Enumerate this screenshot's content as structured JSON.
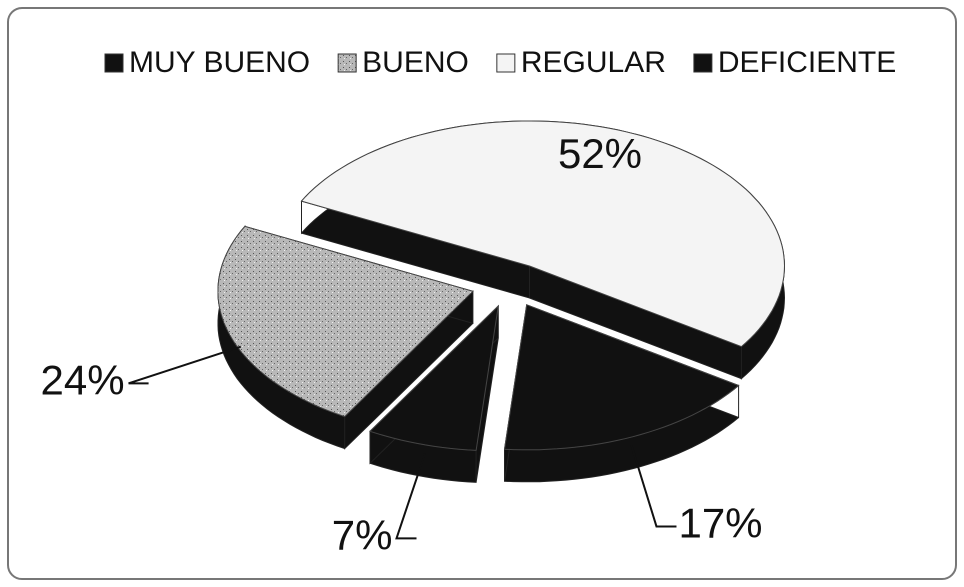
{
  "chart_data": {
    "type": "pie",
    "categories": [
      "MUY BUENO",
      "BUENO",
      "REGULAR",
      "DEFICIENTE"
    ],
    "values": [
      7,
      24,
      52,
      17
    ],
    "value_labels": [
      "7%",
      "24%",
      "52%",
      "17%"
    ],
    "colors": [
      "#111111",
      "#b0b0b0",
      "#f4f4f4",
      "#111111"
    ],
    "legend": "top"
  }
}
